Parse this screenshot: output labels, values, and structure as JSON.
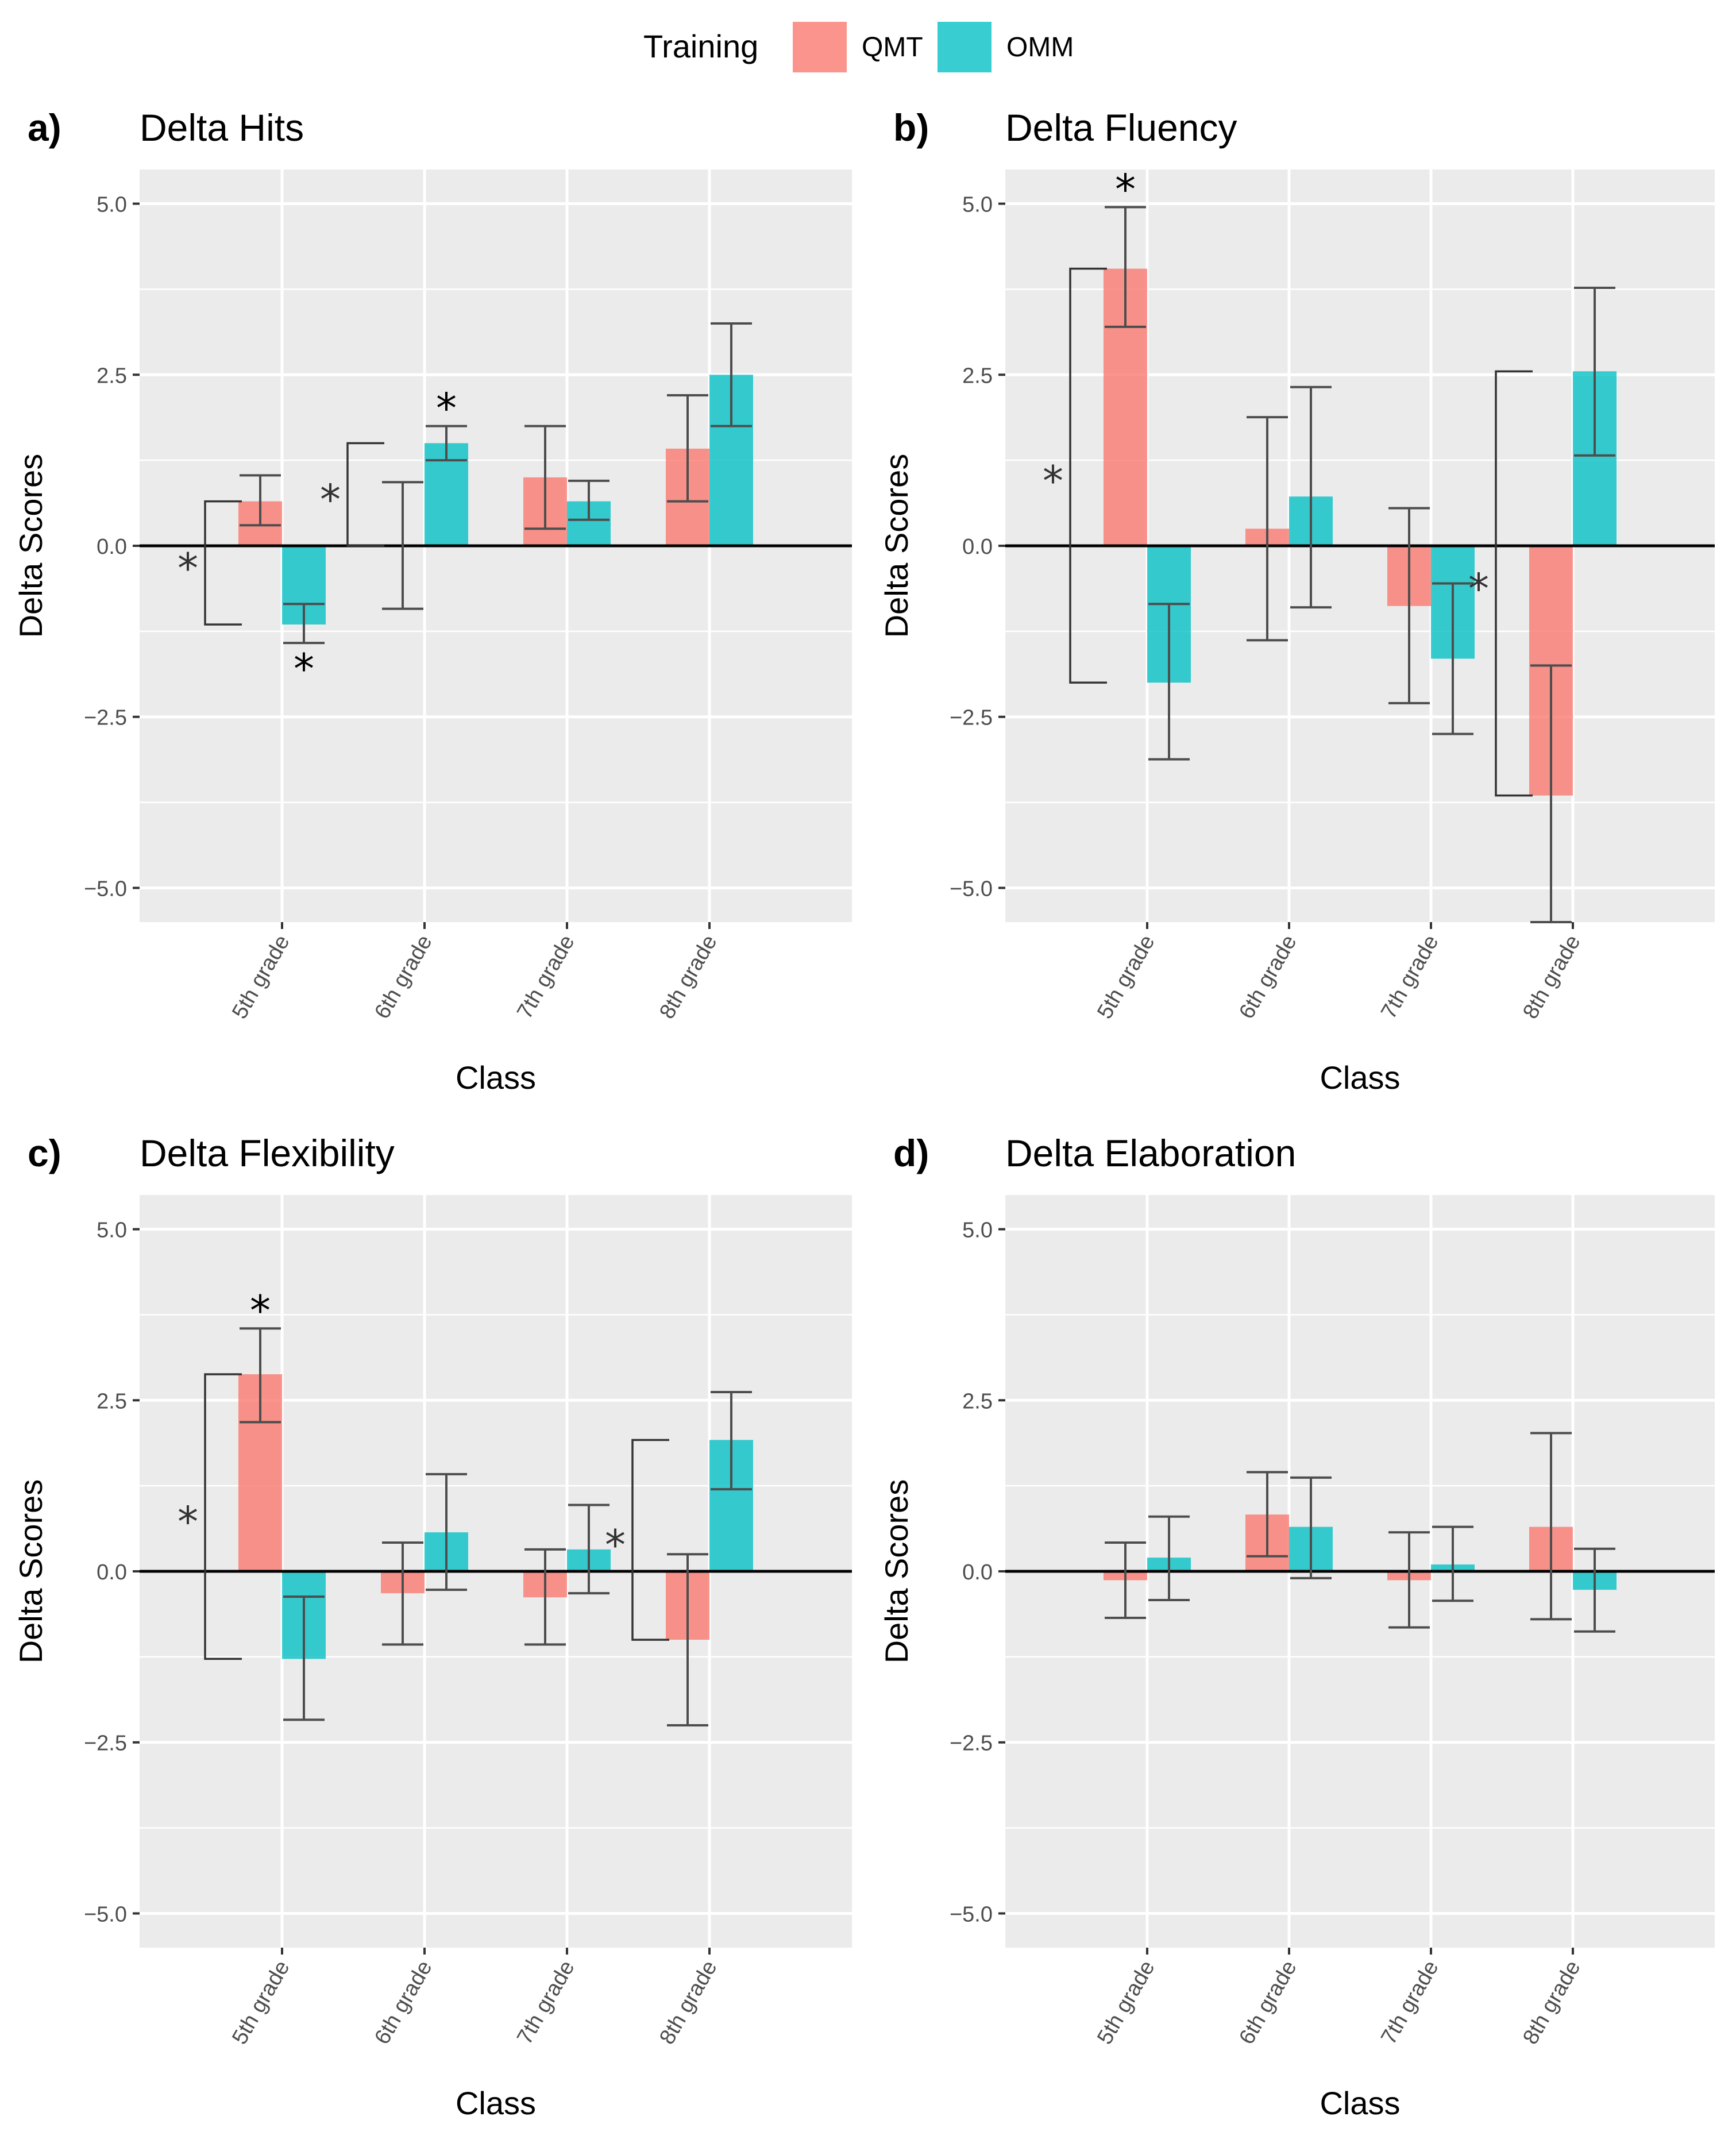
{
  "legend": {
    "title": "Training",
    "entries": [
      {
        "name": "QMT",
        "color": "#F8766D"
      },
      {
        "name": "OMM",
        "color": "#00BFC4"
      }
    ]
  },
  "colors": {
    "panel_bg": "#EBEBEB",
    "grid": "#FFFFFF",
    "errorbar": "#4D4D4D",
    "bracket": "#333333"
  },
  "chart_data": [
    {
      "type": "bar",
      "letter": "a)",
      "title": "Delta Hits",
      "xlabel": "Class",
      "ylabel": "Delta Scores",
      "ylim": [
        -5.5,
        5.5
      ],
      "yticks": [
        5.0,
        2.5,
        0.0,
        -2.5,
        -5.0
      ],
      "ytick_labels": [
        "5.0",
        "2.5",
        "0.0",
        "−2.5",
        "−5.0"
      ],
      "categories": [
        "5th grade",
        "6th grade",
        "7th grade",
        "8th grade"
      ],
      "series": [
        {
          "name": "QMT",
          "values": [
            0.65,
            0.0,
            1.0,
            1.42
          ],
          "lower": [
            0.3,
            -0.92,
            0.25,
            0.65
          ],
          "upper": [
            1.03,
            0.93,
            1.75,
            2.2
          ]
        },
        {
          "name": "OMM",
          "values": [
            -1.15,
            1.5,
            0.65,
            2.5
          ],
          "lower": [
            -1.42,
            1.25,
            0.38,
            1.75
          ],
          "upper": [
            -0.85,
            1.75,
            0.95,
            3.25
          ]
        }
      ],
      "stars": [
        {
          "cat": 1,
          "series": 1,
          "side": "above",
          "label": "*"
        },
        {
          "cat": 0,
          "series": 1,
          "side": "below",
          "label": "*"
        }
      ],
      "brackets": [
        {
          "cat": 0,
          "top": 0.65,
          "bottom": -1.15,
          "label": "*"
        },
        {
          "cat": 1,
          "top": 1.5,
          "bottom": 0.0,
          "label": "*"
        }
      ]
    },
    {
      "type": "bar",
      "letter": "b)",
      "title": "Delta Fluency",
      "xlabel": "Class",
      "ylabel": "Delta Scores",
      "ylim": [
        -5.5,
        5.5
      ],
      "yticks": [
        5.0,
        2.5,
        0.0,
        -2.5,
        -5.0
      ],
      "ytick_labels": [
        "5.0",
        "2.5",
        "0.0",
        "−2.5",
        "−5.0"
      ],
      "categories": [
        "5th grade",
        "6th grade",
        "7th grade",
        "8th grade"
      ],
      "series": [
        {
          "name": "QMT",
          "values": [
            4.05,
            0.25,
            -0.88,
            -3.65
          ],
          "lower": [
            3.2,
            -1.38,
            -2.3,
            -5.5
          ],
          "upper": [
            4.95,
            1.88,
            0.55,
            -1.75
          ]
        },
        {
          "name": "OMM",
          "values": [
            -2.0,
            0.72,
            -1.65,
            2.55
          ],
          "lower": [
            -3.12,
            -0.9,
            -2.75,
            1.32
          ],
          "upper": [
            -0.85,
            2.32,
            -0.55,
            3.77
          ]
        }
      ],
      "stars": [
        {
          "cat": 0,
          "series": 0,
          "side": "above",
          "label": "*"
        }
      ],
      "brackets": [
        {
          "cat": 0,
          "top": 4.05,
          "bottom": -2.0,
          "label": "*"
        },
        {
          "cat": 3,
          "top": 2.55,
          "bottom": -3.65,
          "label": "*"
        }
      ]
    },
    {
      "type": "bar",
      "letter": "c)",
      "title": "Delta Flexibility",
      "xlabel": "Class",
      "ylabel": "Delta Scores",
      "ylim": [
        -5.5,
        5.5
      ],
      "yticks": [
        5.0,
        2.5,
        0.0,
        -2.5,
        -5.0
      ],
      "ytick_labels": [
        "5.0",
        "2.5",
        "0.0",
        "−2.5",
        "−5.0"
      ],
      "categories": [
        "5th grade",
        "6th grade",
        "7th grade",
        "8th grade"
      ],
      "series": [
        {
          "name": "QMT",
          "values": [
            2.88,
            -0.32,
            -0.38,
            -1.0
          ],
          "lower": [
            2.18,
            -1.07,
            -1.07,
            -2.25
          ],
          "upper": [
            3.55,
            0.42,
            0.32,
            0.25
          ]
        },
        {
          "name": "OMM",
          "values": [
            -1.28,
            0.57,
            0.32,
            1.92
          ],
          "lower": [
            -2.17,
            -0.27,
            -0.32,
            1.2
          ],
          "upper": [
            -0.37,
            1.42,
            0.97,
            2.62
          ]
        }
      ],
      "stars": [
        {
          "cat": 0,
          "series": 0,
          "side": "above",
          "label": "*"
        }
      ],
      "brackets": [
        {
          "cat": 0,
          "top": 2.88,
          "bottom": -1.28,
          "label": "*"
        },
        {
          "cat": 3,
          "top": 1.92,
          "bottom": -1.0,
          "label": "*"
        }
      ]
    },
    {
      "type": "bar",
      "letter": "d)",
      "title": "Delta Elaboration",
      "xlabel": "Class",
      "ylabel": "Delta Scores",
      "ylim": [
        -5.5,
        5.5
      ],
      "yticks": [
        5.0,
        2.5,
        0.0,
        -2.5,
        -5.0
      ],
      "ytick_labels": [
        "5.0",
        "2.5",
        "0.0",
        "−2.5",
        "−5.0"
      ],
      "categories": [
        "5th grade",
        "6th grade",
        "7th grade",
        "8th grade"
      ],
      "series": [
        {
          "name": "QMT",
          "values": [
            -0.13,
            0.83,
            -0.13,
            0.65
          ],
          "lower": [
            -0.68,
            0.22,
            -0.82,
            -0.7
          ],
          "upper": [
            0.42,
            1.45,
            0.57,
            2.02
          ]
        },
        {
          "name": "OMM",
          "values": [
            0.2,
            0.65,
            0.1,
            -0.27
          ],
          "lower": [
            -0.42,
            -0.1,
            -0.43,
            -0.88
          ],
          "upper": [
            0.8,
            1.37,
            0.65,
            0.33
          ]
        }
      ],
      "stars": [],
      "brackets": []
    }
  ]
}
